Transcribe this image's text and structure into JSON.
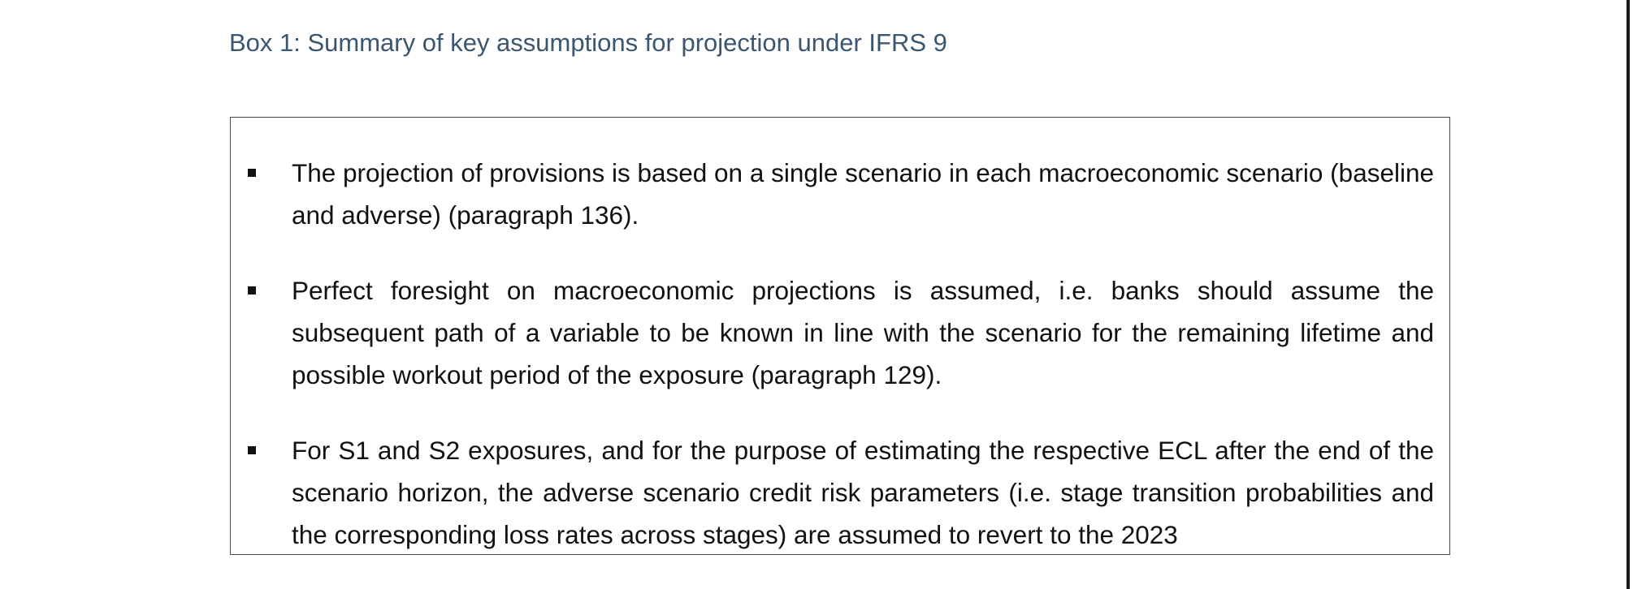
{
  "box": {
    "title": "Box 1: Summary of key assumptions for projection under IFRS 9",
    "bullets": [
      {
        "marker_icon": "square-bullet-icon",
        "text": "The projection of provisions is based on a single scenario in each macroeconomic scenario (baseline and adverse) (paragraph 136)."
      },
      {
        "marker_icon": "square-bullet-icon",
        "text": "Perfect foresight on macroeconomic projections is assumed, i.e. banks should assume the subsequent path of a variable to be known in line with the scenario for the remaining lifetime and possible workout period of the exposure (paragraph 129)."
      },
      {
        "marker_icon": "square-bullet-icon",
        "text": "For S1 and S2 exposures, and for the purpose of estimating the respective ECL after the end of the scenario horizon, the adverse scenario credit risk parameters (i.e. stage transition probabilities and the corresponding loss rates across stages) are assumed to revert to the 2023"
      }
    ]
  },
  "colors": {
    "title": "#3b5670",
    "text": "#111111",
    "border": "#4a4a4a"
  }
}
